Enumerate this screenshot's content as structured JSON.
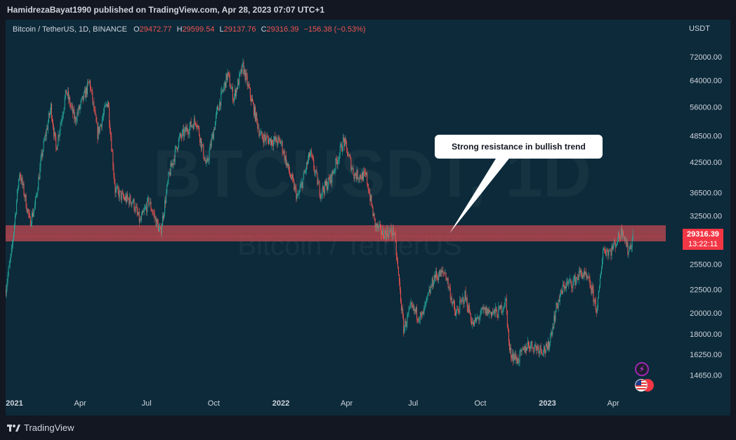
{
  "header": {
    "publish_line": "HamidrezaBayat1990 published on TradingView.com, Apr 28, 2023 07:07 UTC+1"
  },
  "legend": {
    "symbol": "Bitcoin / TetherUS, 1D, BINANCE",
    "open_label": "O",
    "open": "29472.77",
    "high_label": "H",
    "high": "29599.54",
    "low_label": "L",
    "low": "29137.76",
    "close_label": "C",
    "close": "29316.39",
    "change": "−156.38 (−0.53%)"
  },
  "watermark": {
    "ticker": "BTCUSDT, 1D",
    "name": "Bitcoin / TetherUS"
  },
  "annotation": {
    "text": "Strong resistance in bullish trend"
  },
  "price_label": {
    "price": "29316.39",
    "countdown": "13:22:11"
  },
  "footer": {
    "brand": "TradingView"
  },
  "colors": {
    "background": "#0c2a3a",
    "up": "#26a69a",
    "down": "#ef5350",
    "zone": "#b2474f"
  },
  "chart_data": {
    "type": "candlestick",
    "currency_label": "USDT",
    "y_scale": "log",
    "y_ticks": [
      72000,
      64000,
      56000,
      48500,
      42500,
      36500,
      32500,
      25500,
      22500,
      20000,
      18000,
      16250,
      14650
    ],
    "ylim": [
      13500,
      78000
    ],
    "x_ticks": [
      "2021",
      "Apr",
      "Jul",
      "Oct",
      "2022",
      "Apr",
      "Jul",
      "Oct",
      "2023",
      "Apr"
    ],
    "xlim": [
      "2020-12-20",
      "2023-06-12"
    ],
    "resistance_zone": {
      "low": 28600,
      "high": 31000,
      "from": "2020-12-20",
      "to": "2023-06-12"
    },
    "callout_anchor": {
      "date": "2022-08-20",
      "price": 29800
    },
    "last_price": 29316.39,
    "series": [
      [
        "2020-12-20",
        22500
      ],
      [
        "2020-12-28",
        27000
      ],
      [
        "2021-01-08",
        40500
      ],
      [
        "2021-01-15",
        36000
      ],
      [
        "2021-01-22",
        31500
      ],
      [
        "2021-01-29",
        34000
      ],
      [
        "2021-02-08",
        44500
      ],
      [
        "2021-02-20",
        56000
      ],
      [
        "2021-02-27",
        45500
      ],
      [
        "2021-03-13",
        60500
      ],
      [
        "2021-03-25",
        52500
      ],
      [
        "2021-04-14",
        63500
      ],
      [
        "2021-04-25",
        49000
      ],
      [
        "2021-05-09",
        58000
      ],
      [
        "2021-05-19",
        37000
      ],
      [
        "2021-05-30",
        35500
      ],
      [
        "2021-06-12",
        35000
      ],
      [
        "2021-06-22",
        31500
      ],
      [
        "2021-07-04",
        35000
      ],
      [
        "2021-07-20",
        29800
      ],
      [
        "2021-08-01",
        40000
      ],
      [
        "2021-08-14",
        47500
      ],
      [
        "2021-08-23",
        49500
      ],
      [
        "2021-09-07",
        52500
      ],
      [
        "2021-09-21",
        41500
      ],
      [
        "2021-10-06",
        55000
      ],
      [
        "2021-10-20",
        66000
      ],
      [
        "2021-10-28",
        58500
      ],
      [
        "2021-11-10",
        68500
      ],
      [
        "2021-11-26",
        54500
      ],
      [
        "2021-12-04",
        48500
      ],
      [
        "2021-12-15",
        47500
      ],
      [
        "2022-01-01",
        47000
      ],
      [
        "2022-01-10",
        41500
      ],
      [
        "2022-01-24",
        35500
      ],
      [
        "2022-02-10",
        44500
      ],
      [
        "2022-02-24",
        36500
      ],
      [
        "2022-03-10",
        39000
      ],
      [
        "2022-03-28",
        47500
      ],
      [
        "2022-04-11",
        40000
      ],
      [
        "2022-04-28",
        39500
      ],
      [
        "2022-05-10",
        31000
      ],
      [
        "2022-05-20",
        29800
      ],
      [
        "2022-06-05",
        30000
      ],
      [
        "2022-06-18",
        18500
      ],
      [
        "2022-06-28",
        20500
      ],
      [
        "2022-07-13",
        19500
      ],
      [
        "2022-07-30",
        24000
      ],
      [
        "2022-08-14",
        24500
      ],
      [
        "2022-08-28",
        19800
      ],
      [
        "2022-09-10",
        21800
      ],
      [
        "2022-09-21",
        18800
      ],
      [
        "2022-10-05",
        20200
      ],
      [
        "2022-10-25",
        20000
      ],
      [
        "2022-11-05",
        21200
      ],
      [
        "2022-11-10",
        16500
      ],
      [
        "2022-11-21",
        15800
      ],
      [
        "2022-12-05",
        17100
      ],
      [
        "2022-12-20",
        16800
      ],
      [
        "2023-01-01",
        16600
      ],
      [
        "2023-01-14",
        20800
      ],
      [
        "2023-01-24",
        23000
      ],
      [
        "2023-02-05",
        23300
      ],
      [
        "2023-02-16",
        24500
      ],
      [
        "2023-02-28",
        23200
      ],
      [
        "2023-03-10",
        20200
      ],
      [
        "2023-03-18",
        27500
      ],
      [
        "2023-03-28",
        27200
      ],
      [
        "2023-04-10",
        29500
      ],
      [
        "2023-04-14",
        30500
      ],
      [
        "2023-04-21",
        27300
      ],
      [
        "2023-04-26",
        28400
      ],
      [
        "2023-04-28",
        29316
      ]
    ]
  }
}
